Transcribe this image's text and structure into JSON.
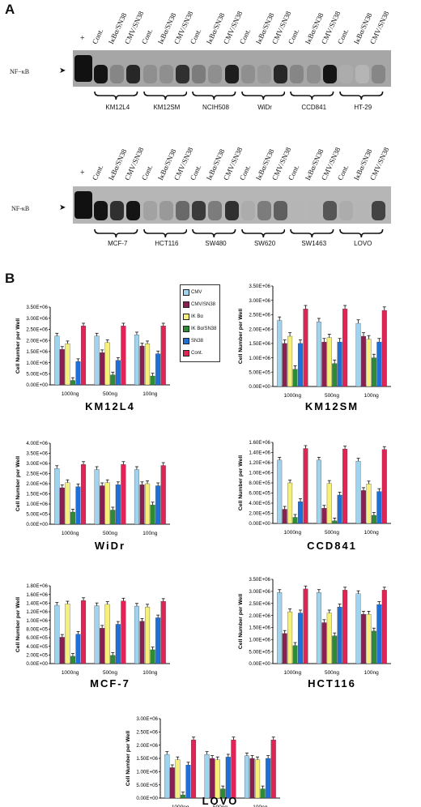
{
  "panel_a": {
    "letter": "A",
    "blots": [
      {
        "plus": "+",
        "nfkb_label": "NF−κB",
        "lanes": [
          "Cont.",
          "IκBα/SN38",
          "CMV/SN38",
          "Cont.",
          "IκBα/SN38",
          "CMV/SN38",
          "Cont.",
          "IκBα/SN38",
          "CMV/SN38",
          "Cont.",
          "IκBα/SN38",
          "CMV/SN38",
          "Cont.",
          "IκBα/SN38",
          "CMV/SN38",
          "Cont.",
          "IκBα/SN38",
          "CMV/SN38"
        ],
        "cell_lines": [
          "KM12L4",
          "KM12SM",
          "NCIH508",
          "WiDr",
          "CCD841",
          "HT-29"
        ]
      },
      {
        "plus": "+",
        "nfkb_label": "NF-κB",
        "lanes": [
          "Cont.",
          "IκBα/SN38",
          "CMV/SN38",
          "Cont.",
          "IκBα/SN38",
          "CMV/SN38",
          "Cont.",
          "IκBα/SN38",
          "CMV/SN38",
          "Cont.",
          "IκBα/SN38",
          "CMV/SN38",
          "Cont.",
          "IκBα/SN38",
          "CMV/SN38",
          "Cont.",
          "IκBα/SN38",
          "CMV/SN38"
        ],
        "cell_lines": [
          "MCF-7",
          "HCT116",
          "SW480",
          "SW620",
          "SW1463",
          "LOVO"
        ]
      }
    ]
  },
  "panel_b": {
    "letter": "B",
    "legend": [
      {
        "label": "CMV",
        "color": "#9fd3ee"
      },
      {
        "label": "CMV/SN38",
        "color": "#8a1f52"
      },
      {
        "label": "IK Bα",
        "color": "#f6f07a"
      },
      {
        "label": "IK Bα/SN38",
        "color": "#2d8a36"
      },
      {
        "label": "SN38",
        "color": "#1e6fd8"
      },
      {
        "label": "Cont.",
        "color": "#e02456"
      }
    ]
  },
  "chart_data": [
    {
      "type": "bar",
      "title": "KM12L4",
      "ylabel": "Cell Number per Well",
      "categories": [
        "1000ng",
        "500ng",
        "100ng"
      ],
      "yticks": [
        "0.00E+00",
        "5.00E+05",
        "1.00E+06",
        "1.50E+06",
        "2.00E+06",
        "2.50E+06",
        "3.00E+06",
        "3.50E+06"
      ],
      "ylim": [
        0,
        3500000
      ],
      "series": [
        {
          "name": "CMV",
          "values": [
            2200000,
            2200000,
            2250000
          ]
        },
        {
          "name": "CMV/SN38",
          "values": [
            1600000,
            1450000,
            1750000
          ]
        },
        {
          "name": "IK Bα",
          "values": [
            1850000,
            1900000,
            1850000
          ]
        },
        {
          "name": "IK Bα/SN38",
          "values": [
            200000,
            450000,
            400000
          ]
        },
        {
          "name": "SN38",
          "values": [
            1050000,
            1100000,
            1400000
          ]
        },
        {
          "name": "Cont.",
          "values": [
            2650000,
            2650000,
            2650000
          ]
        }
      ]
    },
    {
      "type": "bar",
      "title": "KM12SM",
      "ylabel": "Cell Number per Well",
      "categories": [
        "1000ng",
        "500ng",
        "100ng"
      ],
      "yticks": [
        "0.00E+00",
        "5.00E+05",
        "1.00E+06",
        "1.50E+06",
        "2.00E+06",
        "2.50E+06",
        "3.00E+06",
        "3.50E+06"
      ],
      "ylim": [
        0,
        3500000
      ],
      "series": [
        {
          "name": "CMV",
          "values": [
            2300000,
            2250000,
            2200000
          ]
        },
        {
          "name": "CMV/SN38",
          "values": [
            1500000,
            1550000,
            1750000
          ]
        },
        {
          "name": "IK Bα",
          "values": [
            1750000,
            1700000,
            1650000
          ]
        },
        {
          "name": "IK Bα/SN38",
          "values": [
            600000,
            800000,
            1000000
          ]
        },
        {
          "name": "SN38",
          "values": [
            1500000,
            1550000,
            1550000
          ]
        },
        {
          "name": "Cont.",
          "values": [
            2700000,
            2700000,
            2650000
          ]
        }
      ]
    },
    {
      "type": "bar",
      "title": "WiDr",
      "ylabel": "Cell Number per Well",
      "categories": [
        "1000ng",
        "500ng",
        "100ng"
      ],
      "yticks": [
        "0.00E+00",
        "5.00E+05",
        "1.00E+06",
        "1.50E+06",
        "2.00E+06",
        "2.50E+06",
        "3.00E+06",
        "3.50E+06",
        "4.00E+06"
      ],
      "ylim": [
        0,
        4000000
      ],
      "series": [
        {
          "name": "CMV",
          "values": [
            2750000,
            2700000,
            2700000
          ]
        },
        {
          "name": "CMV/SN38",
          "values": [
            1800000,
            1900000,
            1950000
          ]
        },
        {
          "name": "IK Bα",
          "values": [
            2050000,
            2050000,
            2000000
          ]
        },
        {
          "name": "IK Bα/SN38",
          "values": [
            600000,
            700000,
            950000
          ]
        },
        {
          "name": "SN38",
          "values": [
            1850000,
            1950000,
            1900000
          ]
        },
        {
          "name": "Cont.",
          "values": [
            2950000,
            2950000,
            2900000
          ]
        }
      ]
    },
    {
      "type": "bar",
      "title": "CCD841",
      "ylabel": "Cell Number per Well",
      "categories": [
        "1000ng",
        "500ng",
        "100ng"
      ],
      "yticks": [
        "0.00E+00",
        "2.00E+05",
        "4.00E+05",
        "6.00E+05",
        "8.00E+05",
        "1.00E+06",
        "1.20E+06",
        "1.40E+06",
        "1.60E+06"
      ],
      "ylim": [
        0,
        1600000
      ],
      "series": [
        {
          "name": "CMV",
          "values": [
            1250000,
            1250000,
            1230000
          ]
        },
        {
          "name": "CMV/SN38",
          "values": [
            280000,
            300000,
            650000
          ]
        },
        {
          "name": "IK Bα",
          "values": [
            800000,
            790000,
            780000
          ]
        },
        {
          "name": "IK Bα/SN38",
          "values": [
            120000,
            50000,
            160000
          ]
        },
        {
          "name": "SN38",
          "values": [
            430000,
            560000,
            630000
          ]
        },
        {
          "name": "Cont.",
          "values": [
            1480000,
            1470000,
            1460000
          ]
        }
      ]
    },
    {
      "type": "bar",
      "title": "MCF-7",
      "ylabel": "Cell Number per Well",
      "categories": [
        "1000ng",
        "500ng",
        "100ng"
      ],
      "yticks": [
        "0.00E+00",
        "2.00E+05",
        "4.00E+05",
        "6.00E+05",
        "8.00E+05",
        "1.00E+06",
        "1.20E+06",
        "1.40E+06",
        "1.60E+06",
        "1.80E+06"
      ],
      "ylim": [
        0,
        1800000
      ],
      "series": [
        {
          "name": "CMV",
          "values": [
            1350000,
            1340000,
            1330000
          ]
        },
        {
          "name": "CMV/SN38",
          "values": [
            610000,
            820000,
            980000
          ]
        },
        {
          "name": "IK Bα",
          "values": [
            1380000,
            1370000,
            1310000
          ]
        },
        {
          "name": "IK Bα/SN38",
          "values": [
            170000,
            190000,
            320000
          ]
        },
        {
          "name": "SN38",
          "values": [
            680000,
            910000,
            1060000
          ]
        },
        {
          "name": "Cont.",
          "values": [
            1460000,
            1450000,
            1440000
          ]
        }
      ]
    },
    {
      "type": "bar",
      "title": "HCT116",
      "ylabel": "Cell Number per Well",
      "categories": [
        "1000ng",
        "500ng",
        "100ng"
      ],
      "yticks": [
        "0.00E+00",
        "5.00E+05",
        "1.00E+06",
        "1.50E+06",
        "2.00E+06",
        "2.50E+06",
        "3.00E+06",
        "3.50E+06"
      ],
      "ylim": [
        0,
        3500000
      ],
      "series": [
        {
          "name": "CMV",
          "values": [
            2950000,
            2950000,
            2900000
          ]
        },
        {
          "name": "CMV/SN38",
          "values": [
            1250000,
            1700000,
            2050000
          ]
        },
        {
          "name": "IK Bα",
          "values": [
            2150000,
            2100000,
            2050000
          ]
        },
        {
          "name": "IK Bα/SN38",
          "values": [
            750000,
            1150000,
            1350000
          ]
        },
        {
          "name": "SN38",
          "values": [
            2100000,
            2350000,
            2450000
          ]
        },
        {
          "name": "Cont.",
          "values": [
            3100000,
            3050000,
            3050000
          ]
        }
      ]
    },
    {
      "type": "bar",
      "title": "LOVO",
      "ylabel": "Cell Number per Well",
      "categories": [
        "1000ng",
        "500ng",
        "100ng"
      ],
      "yticks": [
        "0.00E+00",
        "5.00E+05",
        "1.00E+06",
        "1.50E+06",
        "2.00E+06",
        "2.50E+06",
        "3.00E+06"
      ],
      "ylim": [
        0,
        3000000
      ],
      "series": [
        {
          "name": "CMV",
          "values": [
            1650000,
            1650000,
            1600000
          ]
        },
        {
          "name": "CMV/SN38",
          "values": [
            1150000,
            1500000,
            1500000
          ]
        },
        {
          "name": "IK Bα",
          "values": [
            1450000,
            1450000,
            1450000
          ]
        },
        {
          "name": "IK Bα/SN38",
          "values": [
            120000,
            350000,
            350000
          ]
        },
        {
          "name": "SN38",
          "values": [
            1250000,
            1550000,
            1500000
          ]
        },
        {
          "name": "Cont.",
          "values": [
            2200000,
            2200000,
            2200000
          ]
        }
      ]
    }
  ]
}
